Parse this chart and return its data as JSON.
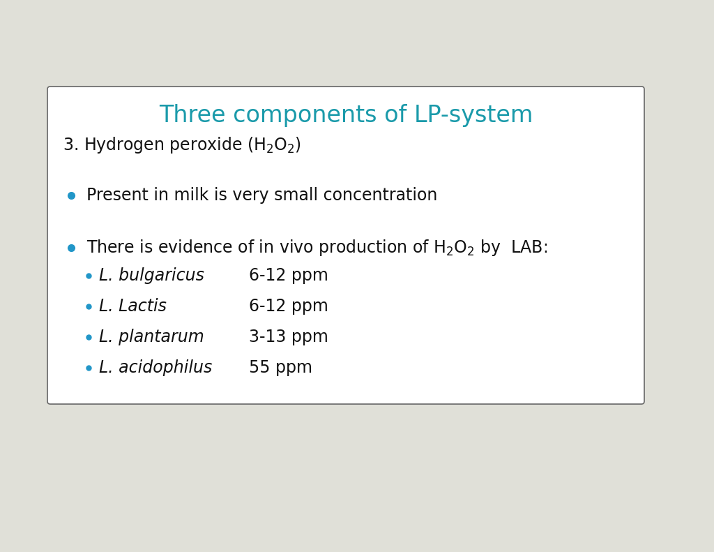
{
  "title": "Three components of LP-system",
  "title_color": "#1a9aaa",
  "background_color": "#e0e0d8",
  "box_color": "#ffffff",
  "bullet_color": "#2196c8",
  "text_color": "#111111",
  "title_fontsize": 24,
  "body_fontsize": 17,
  "sub_bullet_fontsize": 17,
  "sub_bullets": [
    {
      "name": "L. bulgaricus",
      "value": "6-12 ppm"
    },
    {
      "name": "L. Lactis",
      "value": "6-12 ppm"
    },
    {
      "name": "L. plantarum",
      "value": "3-13 ppm"
    },
    {
      "name": "L. acidophilus",
      "value": "55 ppm"
    }
  ]
}
